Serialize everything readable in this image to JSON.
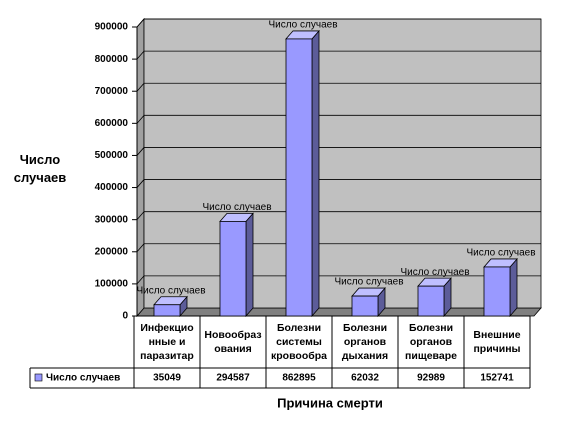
{
  "chart_data": {
    "type": "bar3d",
    "y_label": "Число случаев",
    "x_label": "Причина смерти",
    "categories": [
      [
        "Инфекцио",
        "нные и",
        "паразитар"
      ],
      [
        "Новообраз",
        "ования"
      ],
      [
        "Болезни",
        "системы",
        "кровообра"
      ],
      [
        "Болезни",
        "органов",
        "дыхания"
      ],
      [
        "Болезни",
        "органов",
        "пищеваре"
      ],
      [
        "Внешние",
        "причины"
      ]
    ],
    "series": [
      {
        "name": "Число случаев",
        "color": "#9999ff",
        "values": [
          35049,
          294587,
          862895,
          62032,
          92989,
          152741
        ]
      }
    ],
    "ylim": [
      0,
      900000
    ],
    "yticks": [
      0,
      100000,
      200000,
      300000,
      400000,
      500000,
      600000,
      700000,
      800000,
      900000
    ],
    "grid": true
  }
}
